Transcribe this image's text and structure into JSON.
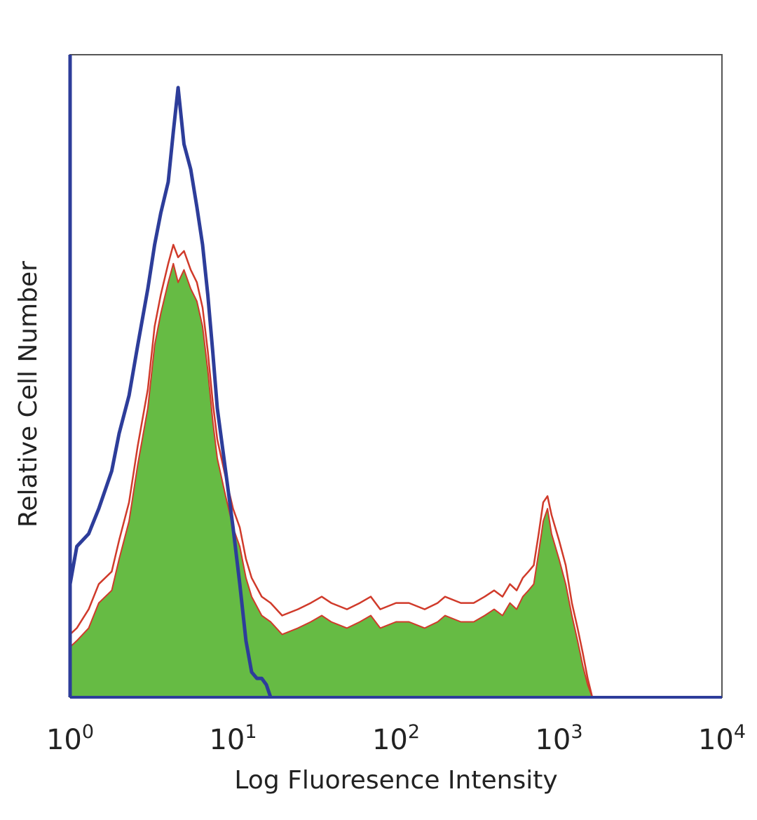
{
  "chart_data": {
    "type": "area",
    "title": "",
    "xlabel": "Log Fluoresence Intensity",
    "ylabel": "Relative Cell Number",
    "x_scale": "log",
    "xlim": [
      1,
      10000
    ],
    "ylim": [
      0,
      100
    ],
    "y_ticks_shown": false,
    "grid": false,
    "legend": "none",
    "x_ticks": [
      {
        "value": 1,
        "base": "10",
        "exp": "0"
      },
      {
        "value": 10,
        "base": "10",
        "exp": "1"
      },
      {
        "value": 100,
        "base": "10",
        "exp": "2"
      },
      {
        "value": 1000,
        "base": "10",
        "exp": "3"
      },
      {
        "value": 10000,
        "base": "10",
        "exp": "4"
      }
    ],
    "series": [
      {
        "style": "filled",
        "color": "#66bb44",
        "edge_color": "#d03a2a",
        "x": [
          1,
          1.1,
          1.3,
          1.5,
          1.8,
          2.0,
          2.3,
          2.6,
          3.0,
          3.3,
          3.6,
          4.0,
          4.3,
          4.6,
          5.0,
          5.5,
          6.0,
          6.5,
          7.0,
          7.5,
          8.0,
          9.0,
          10,
          11,
          12,
          13,
          15,
          17,
          20,
          25,
          30,
          35,
          40,
          50,
          60,
          70,
          80,
          100,
          120,
          150,
          180,
          200,
          250,
          300,
          350,
          400,
          450,
          500,
          550,
          600,
          650,
          700,
          750,
          800,
          850,
          900,
          1000,
          1100,
          1200,
          1300,
          1400,
          1500,
          1600
        ],
        "values": [
          8,
          9,
          11,
          15,
          17,
          22,
          28,
          37,
          46,
          56,
          61,
          66,
          69,
          66,
          68,
          65,
          63,
          59,
          52,
          44,
          38,
          32,
          27,
          24,
          19,
          16,
          13,
          12,
          10,
          11,
          12,
          13,
          12,
          11,
          12,
          13,
          11,
          12,
          12,
          11,
          12,
          13,
          12,
          12,
          13,
          14,
          13,
          15,
          14,
          16,
          17,
          18,
          23,
          28,
          30,
          26,
          22,
          18,
          13,
          9,
          5,
          2,
          0
        ]
      },
      {
        "style": "outline",
        "color": "#d03a2a",
        "x": [
          1,
          1.1,
          1.3,
          1.5,
          1.8,
          2.0,
          2.3,
          2.6,
          3.0,
          3.3,
          3.6,
          4.0,
          4.3,
          4.6,
          5.0,
          5.5,
          6.0,
          6.5,
          7.0,
          7.5,
          8.0,
          9.0,
          10,
          11,
          12,
          13,
          15,
          17,
          20,
          25,
          30,
          35,
          40,
          50,
          60,
          70,
          80,
          100,
          120,
          150,
          180,
          200,
          250,
          300,
          350,
          400,
          450,
          500,
          550,
          600,
          650,
          700,
          750,
          800,
          850,
          900,
          1000,
          1100,
          1200,
          1300,
          1400,
          1500,
          1600
        ],
        "values": [
          10,
          11,
          14,
          18,
          20,
          25,
          31,
          40,
          49,
          59,
          64,
          69,
          72,
          70,
          71,
          68,
          66,
          62,
          55,
          47,
          41,
          35,
          30,
          27,
          22,
          19,
          16,
          15,
          13,
          14,
          15,
          16,
          15,
          14,
          15,
          16,
          14,
          15,
          15,
          14,
          15,
          16,
          15,
          15,
          16,
          17,
          16,
          18,
          17,
          19,
          20,
          21,
          26,
          31,
          32,
          29,
          25,
          21,
          15,
          11,
          7,
          3,
          0
        ]
      },
      {
        "style": "outline",
        "color": "#2d3d9a",
        "x": [
          1,
          1.1,
          1.3,
          1.5,
          1.8,
          2.0,
          2.3,
          2.6,
          3.0,
          3.3,
          3.6,
          4.0,
          4.3,
          4.6,
          5.0,
          5.5,
          6.0,
          6.5,
          7.0,
          7.5,
          8.0,
          9.0,
          10,
          11,
          12,
          13,
          14,
          15,
          16,
          17
        ],
        "values": [
          18,
          24,
          26,
          30,
          36,
          42,
          48,
          56,
          65,
          72,
          77,
          82,
          90,
          97,
          88,
          84,
          78,
          72,
          64,
          55,
          46,
          36,
          27,
          18,
          9,
          4,
          3,
          3,
          2,
          0
        ]
      }
    ]
  }
}
